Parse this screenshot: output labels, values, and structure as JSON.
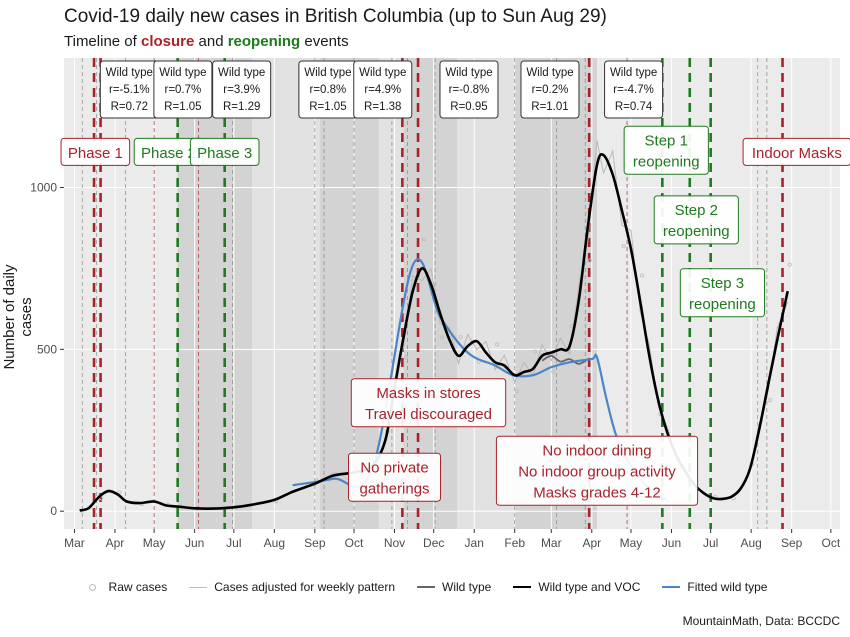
{
  "title": "Covid-19 daily new cases in British Columbia (up to Sun Aug 29)",
  "subtitle": {
    "prefix": "Timeline of ",
    "closure": "closure",
    "middle": " and ",
    "reopening": "reopening",
    "suffix": " events"
  },
  "ylabel": "Number of daily cases",
  "caption": "MountainMath, Data: BCCDC",
  "legend": [
    {
      "label": "Raw cases",
      "kind": "point",
      "color": "#bdbdbd"
    },
    {
      "label": "Cases adjusted for weekly pattern",
      "kind": "line",
      "color": "#bdbdbd",
      "width": 1
    },
    {
      "label": "Wild type",
      "kind": "line",
      "color": "#666666",
      "width": 2
    },
    {
      "label": "Wild type and VOC",
      "kind": "line",
      "color": "#000000",
      "width": 2
    },
    {
      "label": "Fitted wild type",
      "kind": "line",
      "color": "#4a86c5",
      "width": 2
    }
  ],
  "colors": {
    "closure": "#a8222a",
    "reopening": "#1f7a1f",
    "panel": "#ebebeb",
    "shade": "#d3d3d3"
  },
  "chart_data": {
    "type": "line",
    "x_axis": {
      "type": "date",
      "range": [
        "2020-02-22",
        "2021-10-08"
      ],
      "ticks": [
        "2020-03-01",
        "2020-04-01",
        "2020-05-01",
        "2020-06-01",
        "2020-07-01",
        "2020-08-01",
        "2020-09-01",
        "2020-10-01",
        "2020-11-01",
        "2020-12-01",
        "2021-01-01",
        "2021-02-01",
        "2021-03-01",
        "2021-04-01",
        "2021-05-01",
        "2021-06-01",
        "2021-07-01",
        "2021-08-01",
        "2021-09-01",
        "2021-10-01"
      ],
      "tick_labels": [
        "Mar",
        "Apr",
        "May",
        "Jun",
        "Jul",
        "Aug",
        "Sep",
        "Oct",
        "Nov",
        "Dec",
        "Jan",
        "Feb",
        "Mar",
        "Apr",
        "May",
        "Jun",
        "Jul",
        "Aug",
        "Sep",
        "Oct"
      ]
    },
    "y_axis": {
      "range": [
        -55,
        1400
      ],
      "ticks": [
        0,
        500,
        1000
      ]
    },
    "grid": true,
    "legend_position": "bottom",
    "shaded_periods": [
      {
        "start": "2020-05-19",
        "end": "2020-07-15",
        "tone": "dark"
      },
      {
        "start": "2020-09-05",
        "end": "2020-10-20",
        "tone": "dark"
      },
      {
        "start": "2020-11-08",
        "end": "2020-12-19",
        "tone": "dark"
      },
      {
        "start": "2021-02-01",
        "end": "2021-04-05",
        "tone": "dark"
      },
      {
        "start": "2020-07-15",
        "end": "2020-09-05",
        "tone": "light"
      },
      {
        "start": "2020-10-20",
        "end": "2020-11-08",
        "tone": "light"
      },
      {
        "start": "2020-12-19",
        "end": "2021-02-01",
        "tone": "light"
      }
    ],
    "series": [
      {
        "name": "Wild type and VOC",
        "color": "#000000",
        "width": 2.6,
        "points": [
          [
            "2020-03-05",
            2
          ],
          [
            "2020-03-12",
            10
          ],
          [
            "2020-03-20",
            45
          ],
          [
            "2020-03-27",
            62
          ],
          [
            "2020-04-03",
            52
          ],
          [
            "2020-04-10",
            30
          ],
          [
            "2020-04-20",
            25
          ],
          [
            "2020-05-01",
            30
          ],
          [
            "2020-05-10",
            18
          ],
          [
            "2020-05-20",
            14
          ],
          [
            "2020-06-01",
            9
          ],
          [
            "2020-06-15",
            8
          ],
          [
            "2020-07-01",
            12
          ],
          [
            "2020-07-15",
            20
          ],
          [
            "2020-08-01",
            35
          ],
          [
            "2020-08-15",
            60
          ],
          [
            "2020-09-01",
            85
          ],
          [
            "2020-09-15",
            110
          ],
          [
            "2020-10-01",
            120
          ],
          [
            "2020-10-15",
            140
          ],
          [
            "2020-10-25",
            220
          ],
          [
            "2020-11-01",
            380
          ],
          [
            "2020-11-08",
            540
          ],
          [
            "2020-11-15",
            680
          ],
          [
            "2020-11-22",
            750
          ],
          [
            "2020-11-29",
            700
          ],
          [
            "2020-12-06",
            610
          ],
          [
            "2020-12-13",
            530
          ],
          [
            "2020-12-20",
            480
          ],
          [
            "2020-12-27",
            510
          ],
          [
            "2021-01-03",
            525
          ],
          [
            "2021-01-10",
            490
          ],
          [
            "2021-01-17",
            460
          ],
          [
            "2021-01-24",
            450
          ],
          [
            "2021-02-01",
            420
          ],
          [
            "2021-02-08",
            430
          ],
          [
            "2021-02-15",
            440
          ],
          [
            "2021-02-22",
            480
          ],
          [
            "2021-03-01",
            490
          ],
          [
            "2021-03-08",
            500
          ],
          [
            "2021-03-15",
            510
          ],
          [
            "2021-03-22",
            650
          ],
          [
            "2021-03-29",
            880
          ],
          [
            "2021-04-05",
            1070
          ],
          [
            "2021-04-10",
            1100
          ],
          [
            "2021-04-17",
            1040
          ],
          [
            "2021-04-24",
            930
          ],
          [
            "2021-05-01",
            810
          ],
          [
            "2021-05-08",
            650
          ],
          [
            "2021-05-15",
            480
          ],
          [
            "2021-05-22",
            340
          ],
          [
            "2021-05-29",
            240
          ],
          [
            "2021-06-05",
            170
          ],
          [
            "2021-06-12",
            120
          ],
          [
            "2021-06-19",
            80
          ],
          [
            "2021-06-26",
            55
          ],
          [
            "2021-07-03",
            40
          ],
          [
            "2021-07-10",
            38
          ],
          [
            "2021-07-17",
            45
          ],
          [
            "2021-07-24",
            70
          ],
          [
            "2021-07-31",
            130
          ],
          [
            "2021-08-07",
            250
          ],
          [
            "2021-08-14",
            390
          ],
          [
            "2021-08-21",
            530
          ],
          [
            "2021-08-29",
            680
          ]
        ]
      },
      {
        "name": "Wild type",
        "color": "#666666",
        "width": 1.8,
        "points": [
          [
            "2021-02-22",
            465
          ],
          [
            "2021-03-01",
            480
          ],
          [
            "2021-03-08",
            462
          ],
          [
            "2021-03-15",
            470
          ],
          [
            "2021-03-22",
            455
          ],
          [
            "2021-03-29",
            470
          ]
        ]
      },
      {
        "name": "Fitted wild type",
        "color": "#4a86c5",
        "width": 2.2,
        "points": [
          [
            "2020-08-15",
            80
          ],
          [
            "2020-09-15",
            100
          ],
          [
            "2020-10-15",
            130
          ],
          [
            "2020-11-15",
            760
          ],
          [
            "2020-12-06",
            600
          ],
          [
            "2020-12-27",
            490
          ],
          [
            "2021-01-17",
            450
          ],
          [
            "2021-01-31",
            420
          ],
          [
            "2021-02-15",
            420
          ],
          [
            "2021-03-01",
            445
          ],
          [
            "2021-03-15",
            460
          ],
          [
            "2021-04-01",
            470
          ],
          [
            "2021-04-05",
            475
          ],
          [
            "2021-04-12",
            350
          ],
          [
            "2021-04-20",
            230
          ],
          [
            "2021-05-01",
            140
          ],
          [
            "2021-05-15",
            70
          ],
          [
            "2021-05-30",
            30
          ]
        ]
      }
    ],
    "closure_lines": [
      "2020-03-16",
      "2020-03-21",
      "2020-11-07",
      "2020-11-19",
      "2021-03-30",
      "2021-08-25"
    ],
    "reopening_lines": [
      "2020-05-19",
      "2020-06-24",
      "2021-05-25",
      "2021-06-15",
      "2021-07-01"
    ],
    "thin_dashed_lines": [
      "2020-03-07",
      "2020-03-18",
      "2020-04-09",
      "2020-05-01",
      "2020-06-04",
      "2020-06-30",
      "2020-09-01",
      "2020-09-08",
      "2020-10-01",
      "2020-10-30",
      "2020-11-11",
      "2020-12-02",
      "2021-02-01",
      "2021-03-05",
      "2021-03-27",
      "2021-04-28",
      "2021-08-06",
      "2021-08-13"
    ],
    "rate_labels": [
      {
        "date": "2020-04-12",
        "text": [
          "Wild type",
          "r=-5.1%",
          "R=0.72"
        ]
      },
      {
        "date": "2020-05-23",
        "text": [
          "Wild type",
          "r=0.7%",
          "R=1.05"
        ]
      },
      {
        "date": "2020-07-07",
        "text": [
          "Wild type",
          "r=3.9%",
          "R=1.29"
        ]
      },
      {
        "date": "2020-09-11",
        "text": [
          "Wild type",
          "r=0.8%",
          "R=1.05"
        ]
      },
      {
        "date": "2020-10-23",
        "text": [
          "Wild type",
          "r=4.9%",
          "R=1.38"
        ]
      },
      {
        "date": "2020-12-28",
        "text": [
          "Wild type",
          "r=-0.8%",
          "R=0.95"
        ]
      },
      {
        "date": "2021-02-28",
        "text": [
          "Wild type",
          "r=0.2%",
          "R=1.01"
        ]
      },
      {
        "date": "2021-05-03",
        "text": [
          "Wild type",
          "r=-4.7%",
          "R=0.74"
        ]
      }
    ],
    "event_labels": [
      {
        "text": [
          "Phase 1"
        ],
        "date": "2020-03-17",
        "value": 1110,
        "kind": "closure"
      },
      {
        "text": [
          "Phase 2"
        ],
        "date": "2020-05-12",
        "value": 1110,
        "kind": "reopening"
      },
      {
        "text": [
          "Phase 3"
        ],
        "date": "2020-06-24",
        "value": 1110,
        "kind": "reopening"
      },
      {
        "text": [
          "Masks in stores",
          "Travel discouraged"
        ],
        "date": "2020-11-27",
        "value": 335,
        "kind": "closure"
      },
      {
        "text": [
          "No private",
          "gatherings"
        ],
        "date": "2020-11-01",
        "value": 105,
        "kind": "closure"
      },
      {
        "text": [
          "No indoor dining",
          "No indoor group activity",
          "Masks grades 4-12"
        ],
        "date": "2021-04-05",
        "value": 125,
        "kind": "closure"
      },
      {
        "text": [
          "Step 1",
          "reopening"
        ],
        "date": "2021-05-28",
        "value": 1115,
        "kind": "reopening"
      },
      {
        "text": [
          "Step 2",
          "reopening"
        ],
        "date": "2021-06-20",
        "value": 900,
        "kind": "reopening"
      },
      {
        "text": [
          "Step 3",
          "reopening"
        ],
        "date": "2021-07-10",
        "value": 675,
        "kind": "reopening"
      },
      {
        "text": [
          "Indoor Masks"
        ],
        "date": "2021-09-05",
        "value": 1110,
        "kind": "closure"
      }
    ]
  }
}
